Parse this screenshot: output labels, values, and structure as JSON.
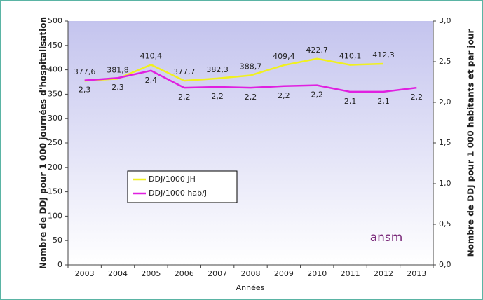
{
  "chart_data": {
    "type": "line",
    "y_label": "Nombre de DDJ pour 1 000 journées d'hospitalisation",
    "y2_label": "Nombre de DDJ pour 1 000 habitants et par jour",
    "x_label": "Années",
    "logo": "ansm",
    "categories": [
      "2003",
      "2004",
      "2005",
      "2006",
      "2007",
      "2008",
      "2009",
      "2010",
      "2011",
      "2012",
      "2013"
    ],
    "series": [
      {
        "name": "DDJ/1000 JH",
        "color": "#f0f020",
        "axis": "y",
        "values": [
          377.6,
          381.8,
          410.4,
          377.7,
          382.3,
          388.7,
          409.4,
          422.7,
          410.1,
          412.3,
          null
        ],
        "value_labels": [
          "377,6",
          "381,8",
          "410,4",
          "377,7",
          "382,3",
          "388,7",
          "409,4",
          "422,7",
          "410,1",
          "412,3",
          null
        ]
      },
      {
        "name": "DDJ/1000 hab/J",
        "color": "#e020e0",
        "axis": "y2",
        "values": [
          2.27,
          2.3,
          2.39,
          2.18,
          2.19,
          2.18,
          2.2,
          2.21,
          2.13,
          2.13,
          2.18
        ],
        "value_labels": [
          "2,3",
          "2,3",
          "2,4",
          "2,2",
          "2,2",
          "2,2",
          "2,2",
          "2,2",
          "2,1",
          "2,1",
          "2,2"
        ]
      }
    ],
    "ylim": [
      0,
      500
    ],
    "yticks": [
      0,
      50,
      100,
      150,
      200,
      250,
      300,
      350,
      400,
      450,
      500
    ],
    "y2lim": [
      0,
      3
    ],
    "y2ticks": [
      {
        "value": 0,
        "label": "0,0"
      },
      {
        "value": 0.5,
        "label": "0,5"
      },
      {
        "value": 1,
        "label": "1,0"
      },
      {
        "value": 1.5,
        "label": "1,5"
      },
      {
        "value": 2,
        "label": "2,0"
      },
      {
        "value": 2.5,
        "label": "2,5"
      },
      {
        "value": 3,
        "label": "3,0"
      }
    ],
    "grid": false
  }
}
